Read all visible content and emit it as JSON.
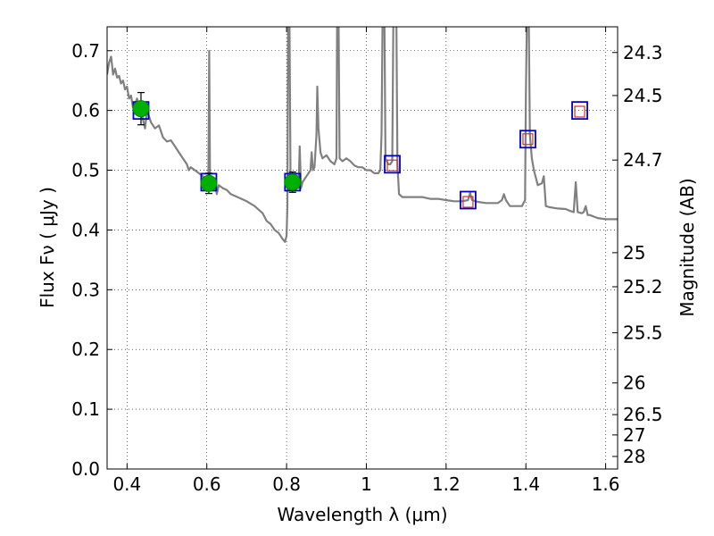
{
  "chart_data": {
    "type": "line",
    "xlabel": "Wavelength  λ (μm)",
    "ylabel": "Flux  Fν  ( μJy )",
    "ylabel_right": "Magnitude (AB)",
    "xlim": [
      0.35,
      1.63
    ],
    "ylim": [
      0.0,
      0.74
    ],
    "x_ticks": [
      0.4,
      0.6,
      0.8,
      1.0,
      1.2,
      1.4,
      1.6
    ],
    "x_tick_labels": [
      "0.4",
      "0.6",
      "0.8",
      "1",
      "1.2",
      "1.4",
      "1.6"
    ],
    "y_ticks": [
      0.0,
      0.1,
      0.2,
      0.3,
      0.4,
      0.5,
      0.6,
      0.7
    ],
    "y_tick_labels": [
      "0.0",
      "0.1",
      "0.2",
      "0.3",
      "0.4",
      "0.5",
      "0.6",
      "0.7"
    ],
    "right_ticks": [
      {
        "flux": 0.697,
        "label": "24.3"
      },
      {
        "flux": 0.625,
        "label": "24.5"
      },
      {
        "flux": 0.517,
        "label": "24.7"
      },
      {
        "flux": 0.362,
        "label": "25"
      },
      {
        "flux": 0.305,
        "label": "25.2"
      },
      {
        "flux": 0.228,
        "label": "25.5"
      },
      {
        "flux": 0.144,
        "label": "26"
      },
      {
        "flux": 0.091,
        "label": "26.5"
      },
      {
        "flux": 0.057,
        "label": "27"
      },
      {
        "flux": 0.021,
        "label": "28"
      }
    ],
    "grid": true,
    "series": [
      {
        "role": "template_spectrum",
        "color": "#808080",
        "points": [
          [
            0.35,
            0.66
          ],
          [
            0.355,
            0.68
          ],
          [
            0.36,
            0.69
          ],
          [
            0.365,
            0.66
          ],
          [
            0.37,
            0.67
          ],
          [
            0.375,
            0.655
          ],
          [
            0.38,
            0.658
          ],
          [
            0.385,
            0.645
          ],
          [
            0.39,
            0.65
          ],
          [
            0.395,
            0.635
          ],
          [
            0.4,
            0.64
          ],
          [
            0.405,
            0.62
          ],
          [
            0.41,
            0.625
          ],
          [
            0.415,
            0.605
          ],
          [
            0.42,
            0.61
          ],
          [
            0.425,
            0.62
          ],
          [
            0.43,
            0.605
          ],
          [
            0.435,
            0.6
          ],
          [
            0.44,
            0.585
          ],
          [
            0.445,
            0.57
          ],
          [
            0.45,
            0.6
          ],
          [
            0.46,
            0.58
          ],
          [
            0.47,
            0.57
          ],
          [
            0.48,
            0.575
          ],
          [
            0.49,
            0.555
          ],
          [
            0.5,
            0.548
          ],
          [
            0.51,
            0.55
          ],
          [
            0.52,
            0.54
          ],
          [
            0.53,
            0.53
          ],
          [
            0.54,
            0.52
          ],
          [
            0.55,
            0.51
          ],
          [
            0.555,
            0.5
          ],
          [
            0.56,
            0.505
          ],
          [
            0.57,
            0.5
          ],
          [
            0.58,
            0.495
          ],
          [
            0.59,
            0.49
          ],
          [
            0.595,
            0.48
          ],
          [
            0.6,
            0.49
          ],
          [
            0.604,
            0.49
          ],
          [
            0.606,
            0.7
          ],
          [
            0.608,
            0.49
          ],
          [
            0.61,
            0.485
          ],
          [
            0.62,
            0.48
          ],
          [
            0.625,
            0.46
          ],
          [
            0.63,
            0.475
          ],
          [
            0.64,
            0.47
          ],
          [
            0.65,
            0.467
          ],
          [
            0.66,
            0.46
          ],
          [
            0.68,
            0.454
          ],
          [
            0.7,
            0.448
          ],
          [
            0.72,
            0.44
          ],
          [
            0.74,
            0.428
          ],
          [
            0.75,
            0.415
          ],
          [
            0.76,
            0.41
          ],
          [
            0.77,
            0.4
          ],
          [
            0.78,
            0.395
          ],
          [
            0.79,
            0.385
          ],
          [
            0.796,
            0.38
          ],
          [
            0.8,
            0.39
          ],
          [
            0.802,
            0.44
          ],
          [
            0.804,
            0.78
          ],
          [
            0.807,
            0.78
          ],
          [
            0.81,
            0.47
          ],
          [
            0.815,
            0.48
          ],
          [
            0.82,
            0.49
          ],
          [
            0.825,
            0.48
          ],
          [
            0.83,
            0.47
          ],
          [
            0.833,
            0.54
          ],
          [
            0.836,
            0.47
          ],
          [
            0.84,
            0.48
          ],
          [
            0.85,
            0.49
          ],
          [
            0.855,
            0.495
          ],
          [
            0.86,
            0.5
          ],
          [
            0.863,
            0.53
          ],
          [
            0.866,
            0.5
          ],
          [
            0.87,
            0.505
          ],
          [
            0.875,
            0.56
          ],
          [
            0.877,
            0.64
          ],
          [
            0.88,
            0.57
          ],
          [
            0.885,
            0.53
          ],
          [
            0.89,
            0.52
          ],
          [
            0.9,
            0.525
          ],
          [
            0.91,
            0.515
          ],
          [
            0.92,
            0.51
          ],
          [
            0.925,
            0.52
          ],
          [
            0.927,
            0.78
          ],
          [
            0.93,
            0.78
          ],
          [
            0.933,
            0.52
          ],
          [
            0.94,
            0.515
          ],
          [
            0.95,
            0.52
          ],
          [
            0.96,
            0.515
          ],
          [
            0.97,
            0.508
          ],
          [
            0.98,
            0.505
          ],
          [
            0.99,
            0.505
          ],
          [
            1.0,
            0.5
          ],
          [
            1.01,
            0.5
          ],
          [
            1.02,
            0.495
          ],
          [
            1.03,
            0.495
          ],
          [
            1.035,
            0.5
          ],
          [
            1.038,
            0.56
          ],
          [
            1.041,
            0.78
          ],
          [
            1.045,
            0.78
          ],
          [
            1.048,
            0.52
          ],
          [
            1.055,
            0.51
          ],
          [
            1.06,
            0.51
          ],
          [
            1.065,
            0.515
          ],
          [
            1.068,
            0.78
          ],
          [
            1.075,
            0.78
          ],
          [
            1.078,
            0.51
          ],
          [
            1.082,
            0.46
          ],
          [
            1.09,
            0.455
          ],
          [
            1.1,
            0.455
          ],
          [
            1.12,
            0.455
          ],
          [
            1.14,
            0.455
          ],
          [
            1.16,
            0.452
          ],
          [
            1.18,
            0.452
          ],
          [
            1.2,
            0.45
          ],
          [
            1.22,
            0.448
          ],
          [
            1.24,
            0.448
          ],
          [
            1.255,
            0.45
          ],
          [
            1.26,
            0.462
          ],
          [
            1.265,
            0.45
          ],
          [
            1.28,
            0.447
          ],
          [
            1.3,
            0.445
          ],
          [
            1.32,
            0.445
          ],
          [
            1.33,
            0.445
          ],
          [
            1.34,
            0.45
          ],
          [
            1.345,
            0.46
          ],
          [
            1.35,
            0.45
          ],
          [
            1.36,
            0.44
          ],
          [
            1.37,
            0.44
          ],
          [
            1.38,
            0.44
          ],
          [
            1.39,
            0.44
          ],
          [
            1.398,
            0.45
          ],
          [
            1.4,
            0.62
          ],
          [
            1.403,
            0.78
          ],
          [
            1.407,
            0.78
          ],
          [
            1.41,
            0.56
          ],
          [
            1.415,
            0.52
          ],
          [
            1.42,
            0.5
          ],
          [
            1.43,
            0.475
          ],
          [
            1.44,
            0.478
          ],
          [
            1.445,
            0.49
          ],
          [
            1.45,
            0.44
          ],
          [
            1.46,
            0.438
          ],
          [
            1.48,
            0.436
          ],
          [
            1.5,
            0.435
          ],
          [
            1.51,
            0.432
          ],
          [
            1.52,
            0.43
          ],
          [
            1.525,
            0.48
          ],
          [
            1.53,
            0.43
          ],
          [
            1.54,
            0.428
          ],
          [
            1.545,
            0.43
          ],
          [
            1.55,
            0.44
          ],
          [
            1.555,
            0.425
          ],
          [
            1.56,
            0.425
          ],
          [
            1.58,
            0.42
          ],
          [
            1.6,
            0.418
          ],
          [
            1.62,
            0.418
          ],
          [
            1.63,
            0.418
          ]
        ]
      },
      {
        "role": "model_photometry",
        "marker": "open_square",
        "color": "#0000cc",
        "points": [
          [
            0.435,
            0.6
          ],
          [
            0.605,
            0.48
          ],
          [
            0.815,
            0.48
          ],
          [
            1.065,
            0.51
          ],
          [
            1.255,
            0.45
          ],
          [
            1.405,
            0.552
          ],
          [
            1.535,
            0.6
          ]
        ]
      },
      {
        "role": "small_markers",
        "marker": "small_open_square",
        "color": "#cc3333",
        "points": [
          [
            1.065,
            0.508
          ],
          [
            1.255,
            0.447
          ],
          [
            1.405,
            0.552
          ],
          [
            1.535,
            0.598
          ]
        ]
      },
      {
        "role": "observed_photometry",
        "marker": "filled_circle",
        "color": "#00b000",
        "points": [
          [
            0.435,
            0.603
          ],
          [
            0.605,
            0.478
          ],
          [
            0.815,
            0.48
          ]
        ],
        "errors": [
          0.027,
          0.017,
          0.017
        ]
      }
    ]
  }
}
